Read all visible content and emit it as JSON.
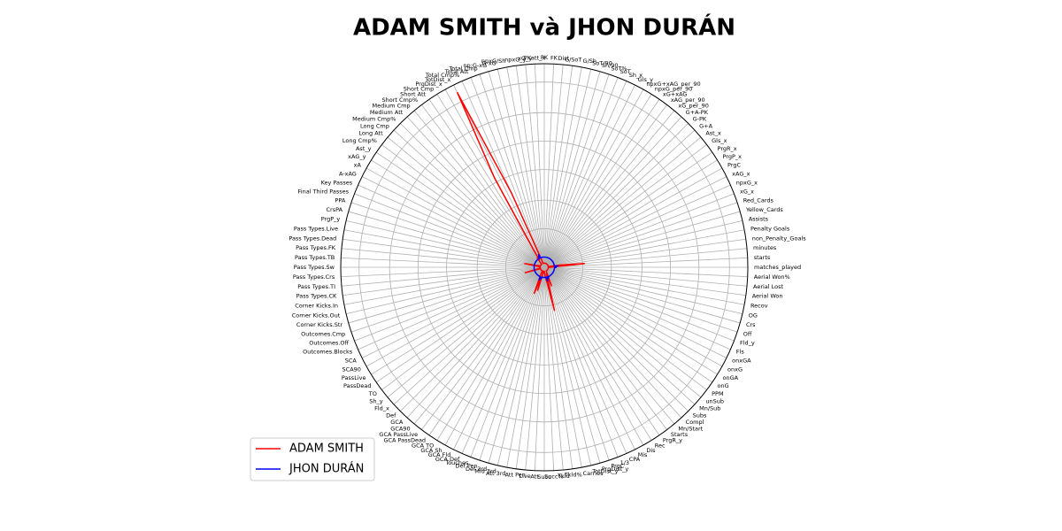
{
  "chart_data": {
    "type": "radar",
    "title": "ADAM SMITH và JHON DURÁN",
    "categories": [
      "matches_played",
      "starts",
      "minutes",
      "non_Penalty_Goals",
      "Penalty Goals",
      "Assists",
      "Yellow_Cards",
      "Red_Cards",
      "xG_x",
      "npxG_x",
      "xAG_x",
      "PrgC",
      "PrgP_x",
      "PrgR_x",
      "Gls_x",
      "Ast_x",
      "G+A",
      "G-PK",
      "G+A-PK",
      "xG_per_90",
      "xAG_per_90",
      "xG+xAG",
      "npxG_per_90",
      "npxG+xAG_per_90",
      "Gls_y",
      "Sh_x",
      "SoT",
      "SoT%",
      "Sh/90",
      "SoT/90",
      "G/Sh",
      "G/SoT",
      "Dist",
      "FK",
      "PK",
      "PKatt_x",
      "xG_y",
      "npxG_y",
      "npxG/Sh",
      "G-xG",
      "np:G-xG",
      "Total Cmp",
      "Total Att",
      "Total Cmp%",
      "TotDist_x",
      "PrgDist_x",
      "Short Cmp",
      "Short Att",
      "Short Cmp%",
      "Medium Cmp",
      "Medium Att",
      "Medium Cmp%",
      "Long Cmp",
      "Long Att",
      "Long Cmp%",
      "Ast_y",
      "xAG_y",
      "xA",
      "A-xAG",
      "Key Passes",
      "Final Third Passes",
      "PPA",
      "CrsPA",
      "PrgP_y",
      "Pass Types.Live",
      "Pass Types.Dead",
      "Pass Types.FK",
      "Pass Types.TB",
      "Pass Types.Sw",
      "Pass Types.Crs",
      "Pass Types.TI",
      "Pass Types.CK",
      "Corner Kicks.In",
      "Corner Kicks.Out",
      "Corner Kicks.Str",
      "Outcomes.Cmp",
      "Outcomes.Off",
      "Outcomes.Blocks",
      "SCA",
      "SCA90",
      "PassLive",
      "PassDead",
      "TO",
      "Sh_y",
      "Fld_x",
      "Def",
      "GCA",
      "GCA90",
      "GCA PassLive",
      "GCA PassDead",
      "GCA TO",
      "GCA Sh",
      "GCA Fld",
      "GCA Def",
      "Touches",
      "Def Pen",
      "Def 3rd",
      "Mid 3rd",
      "Att 3rd",
      "Att Pen",
      "Live",
      "Att",
      "Succ",
      "Succ%",
      "Tkld",
      "Tkld%",
      "Carries",
      "TotDist_y",
      "PrgDist_y",
      "PrgC",
      "1/3",
      "CPA",
      "Mis",
      "Dis",
      "Rec",
      "PrgR_y",
      "Starts",
      "Mn/Start",
      "Compl",
      "Subs",
      "Mn/Sub",
      "unSub",
      "PPM",
      "onG",
      "onGA",
      "onxG",
      "onxGA",
      "Fls",
      "Fld_y",
      "Off",
      "Crs",
      "OG",
      "Recov",
      "Aerial Won",
      "Aerial Lost",
      "Aerial Won%"
    ],
    "series": [
      {
        "name": "ADAM SMITH",
        "color": "#ff0000",
        "values": [
          3,
          4,
          20,
          8,
          2,
          2,
          2,
          2,
          2,
          2,
          2,
          2,
          2,
          2,
          2,
          2,
          2,
          2,
          2,
          2,
          2,
          2,
          2,
          2,
          2,
          2,
          2,
          2,
          2,
          2,
          2,
          2,
          2,
          2,
          2,
          2,
          2,
          2,
          2,
          2,
          2,
          3,
          6,
          40,
          96,
          50,
          10,
          4,
          6,
          3,
          2,
          2,
          2,
          2,
          2,
          2,
          2,
          2,
          2,
          2,
          2,
          2,
          3,
          4,
          10,
          3,
          2,
          2,
          2,
          2,
          2,
          2,
          2,
          3,
          10,
          3,
          2,
          2,
          2,
          2,
          2,
          2,
          2,
          2,
          2,
          2,
          2,
          2,
          2,
          2,
          2,
          2,
          3,
          6,
          14,
          5,
          12,
          4,
          2,
          2,
          2,
          2,
          2,
          3,
          4,
          6,
          8,
          22,
          6,
          3,
          10,
          4,
          2,
          2,
          2,
          2,
          2,
          2,
          2,
          2,
          2,
          2,
          2,
          2,
          2,
          2,
          2,
          2,
          2,
          2,
          2,
          2,
          2,
          2,
          2,
          2
        ]
      },
      {
        "name": "JHON DURÁN",
        "color": "#0000ff",
        "values": [
          6,
          5,
          7,
          5,
          5,
          5,
          5,
          5,
          5,
          5,
          5,
          5,
          5,
          5,
          5,
          5,
          5,
          5,
          5,
          5,
          5,
          5,
          5,
          5,
          5,
          5,
          5,
          5,
          5,
          5,
          5,
          5,
          5,
          5,
          5,
          5,
          5,
          5,
          5,
          5,
          5,
          5,
          5,
          7,
          6,
          5,
          5,
          5,
          5,
          5,
          5,
          5,
          5,
          5,
          5,
          5,
          5,
          5,
          5,
          5,
          5,
          5,
          5,
          5,
          5,
          5,
          5,
          5,
          5,
          5,
          5,
          5,
          5,
          5,
          5,
          5,
          5,
          5,
          5,
          5,
          5,
          5,
          5,
          5,
          5,
          5,
          5,
          5,
          5,
          5,
          5,
          5,
          5,
          5,
          7,
          5,
          6,
          5,
          5,
          5,
          5,
          5,
          5,
          5,
          5,
          5,
          5,
          7,
          5,
          5,
          6,
          5,
          5,
          5,
          5,
          5,
          5,
          5,
          5,
          5,
          5,
          5,
          5,
          5,
          5,
          5,
          5,
          5,
          5,
          5,
          5,
          5,
          5,
          5,
          5,
          5
        ]
      }
    ],
    "ylim": [
      0,
      100
    ],
    "yticks": [
      19,
      33,
      48,
      62,
      76,
      91
    ],
    "grid": true,
    "legend": "lower left"
  }
}
